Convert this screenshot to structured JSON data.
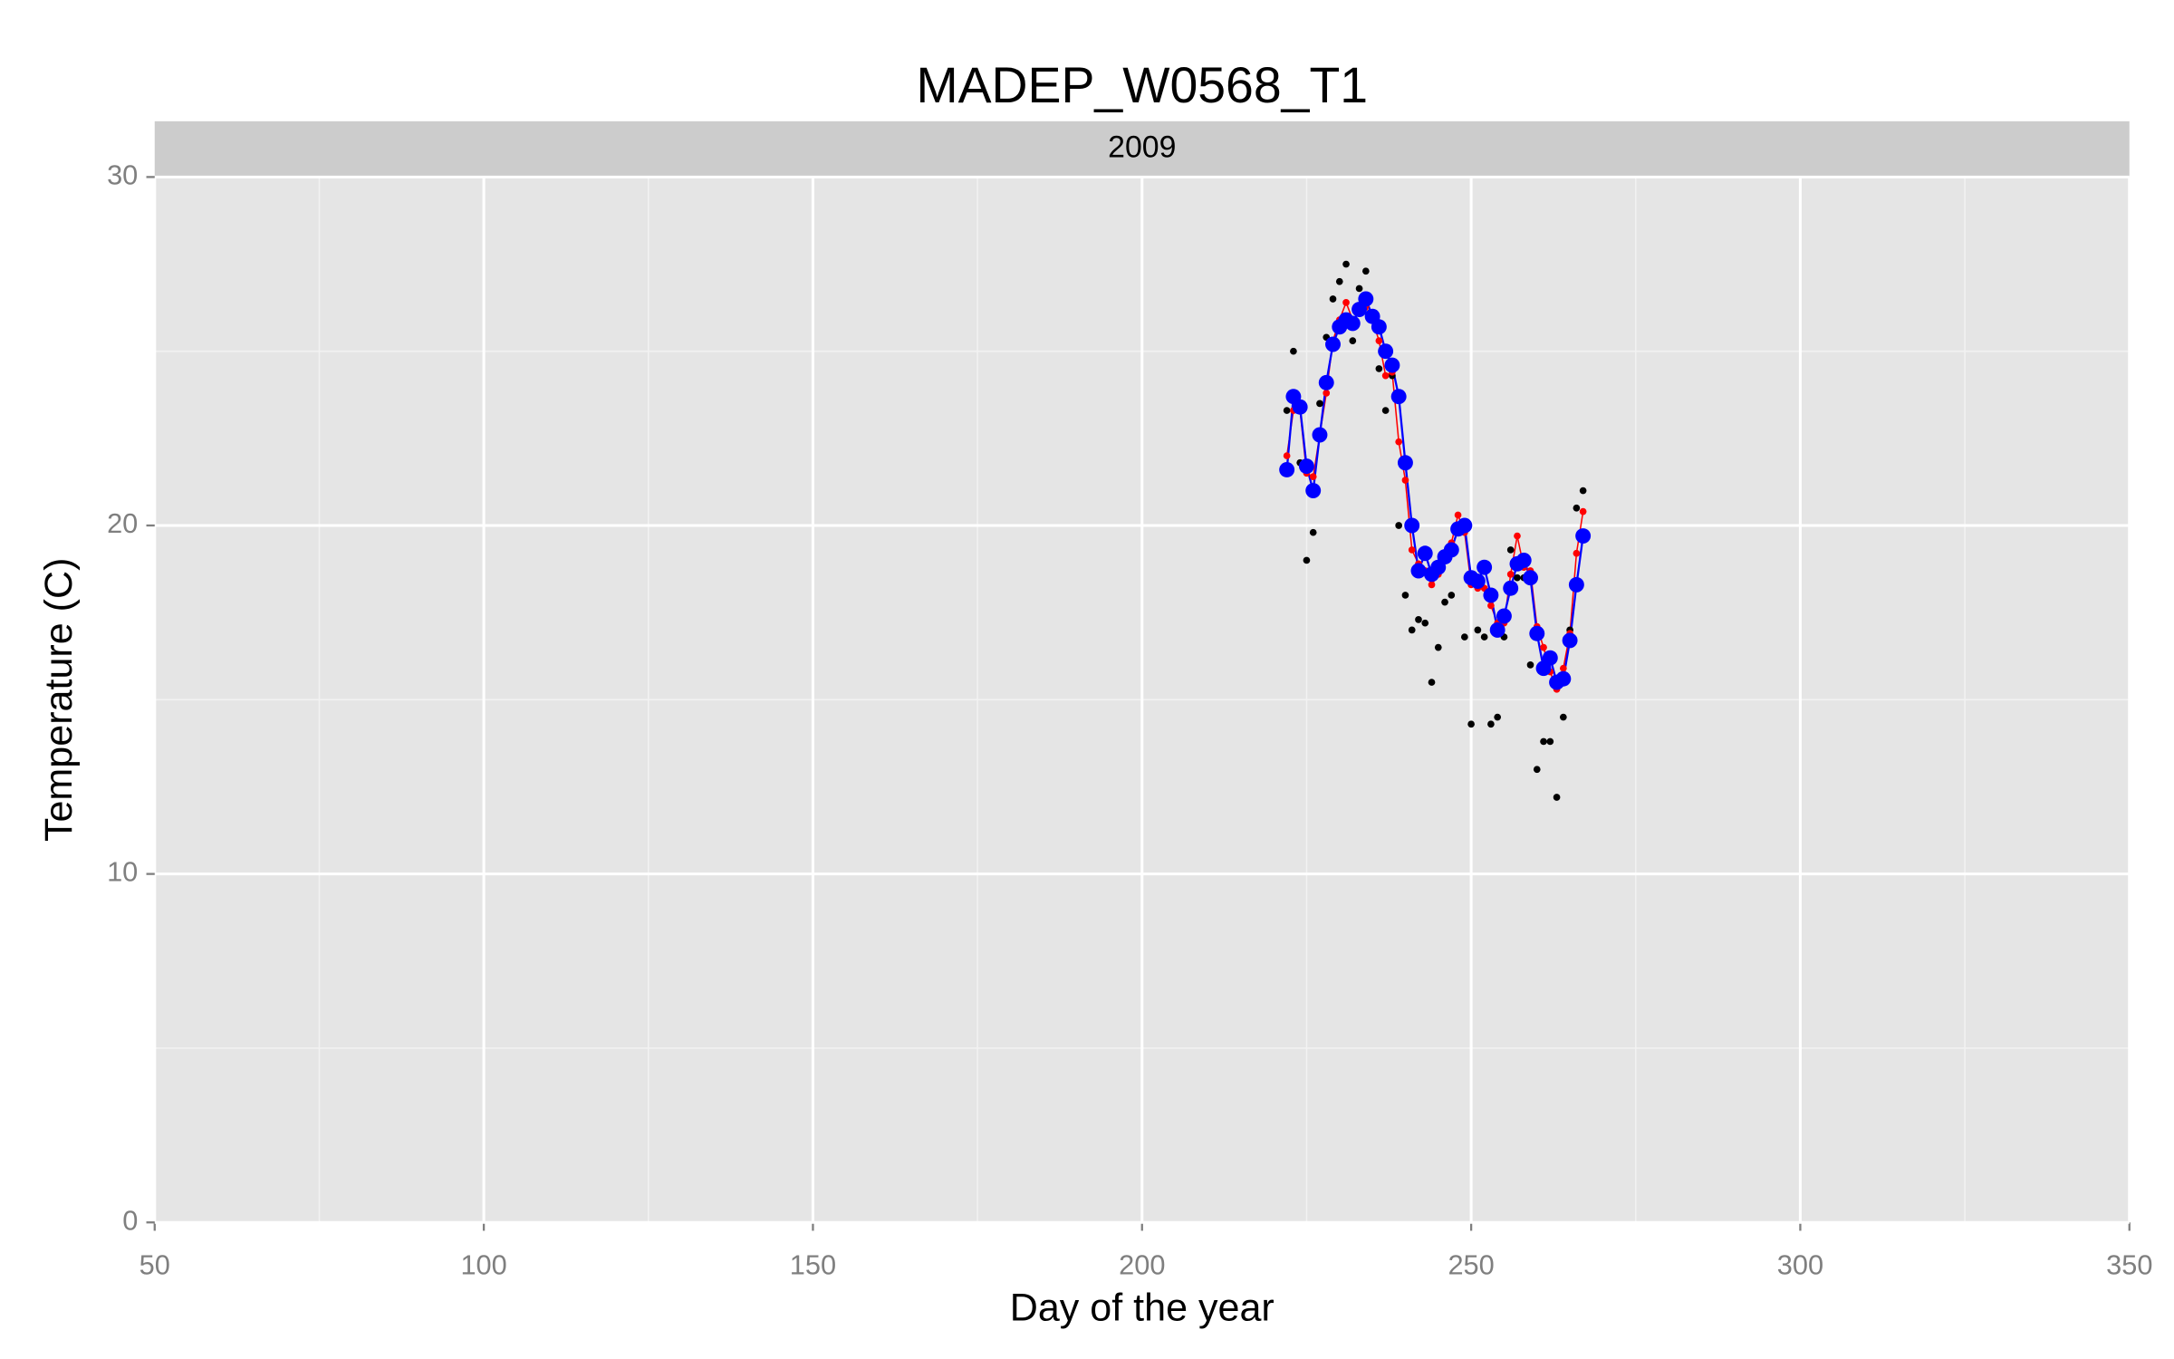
{
  "chart_data": {
    "type": "scatter",
    "title": "MADEP_W0568_T1",
    "facet_label": "2009",
    "x_label": "Day of the year",
    "y_label": "Temperature (C)",
    "xlim": [
      50,
      350
    ],
    "xticks": [
      50,
      100,
      150,
      200,
      250,
      300,
      350
    ],
    "ylim": [
      0,
      30
    ],
    "yticks": [
      0,
      10,
      20,
      30
    ],
    "grid": true,
    "minor_grid": true,
    "x": [
      222,
      223,
      224,
      225,
      226,
      227,
      228,
      229,
      230,
      231,
      232,
      233,
      234,
      235,
      236,
      237,
      238,
      239,
      240,
      241,
      242,
      243,
      244,
      245,
      246,
      247,
      248,
      249,
      250,
      251,
      252,
      253,
      254,
      255,
      256,
      257,
      258,
      259,
      260,
      261,
      262,
      263,
      264,
      265,
      266,
      267
    ],
    "series": [
      {
        "color": "#000000",
        "mode": "points",
        "size": 2.5,
        "values": [
          23.3,
          25.0,
          21.8,
          19.0,
          19.8,
          23.5,
          25.4,
          26.5,
          27.0,
          27.5,
          25.3,
          26.8,
          27.3,
          26.0,
          24.5,
          23.3,
          24.3,
          20.0,
          18.0,
          17.0,
          17.3,
          17.2,
          15.5,
          16.5,
          17.8,
          18.0,
          20.0,
          16.8,
          14.3,
          17.0,
          16.8,
          14.3,
          14.5,
          16.8,
          19.3,
          18.5,
          18.5,
          16.0,
          13.0,
          13.8,
          13.8,
          12.2,
          14.5,
          17.0,
          20.5,
          21.0
        ]
      },
      {
        "color": "#ff0000",
        "mode": "line-points",
        "size": 2.5,
        "values": [
          22.0,
          23.3,
          23.3,
          21.5,
          21.4,
          22.6,
          23.8,
          25.3,
          25.9,
          26.4,
          25.9,
          26.1,
          26.3,
          25.9,
          25.3,
          24.3,
          24.4,
          22.4,
          21.3,
          19.3,
          18.9,
          18.7,
          18.3,
          18.6,
          19.0,
          19.5,
          20.3,
          19.8,
          18.3,
          18.2,
          18.2,
          17.7,
          17.2,
          17.2,
          18.6,
          19.7,
          18.8,
          18.7,
          17.1,
          16.5,
          15.8,
          15.3,
          15.9,
          16.9,
          19.2,
          20.4
        ]
      },
      {
        "color": "#0000ff",
        "mode": "line-points",
        "size": 5.5,
        "values": [
          21.6,
          23.7,
          23.4,
          21.7,
          21.0,
          22.6,
          24.1,
          25.2,
          25.7,
          25.9,
          25.8,
          26.2,
          26.5,
          26.0,
          25.7,
          25.0,
          24.6,
          23.7,
          21.8,
          20.0,
          18.7,
          19.2,
          18.6,
          18.8,
          19.1,
          19.3,
          19.9,
          20.0,
          18.5,
          18.4,
          18.8,
          18.0,
          17.0,
          17.4,
          18.2,
          18.9,
          19.0,
          18.5,
          16.9,
          15.9,
          16.2,
          15.5,
          15.6,
          16.7,
          18.3,
          19.7
        ]
      }
    ]
  }
}
